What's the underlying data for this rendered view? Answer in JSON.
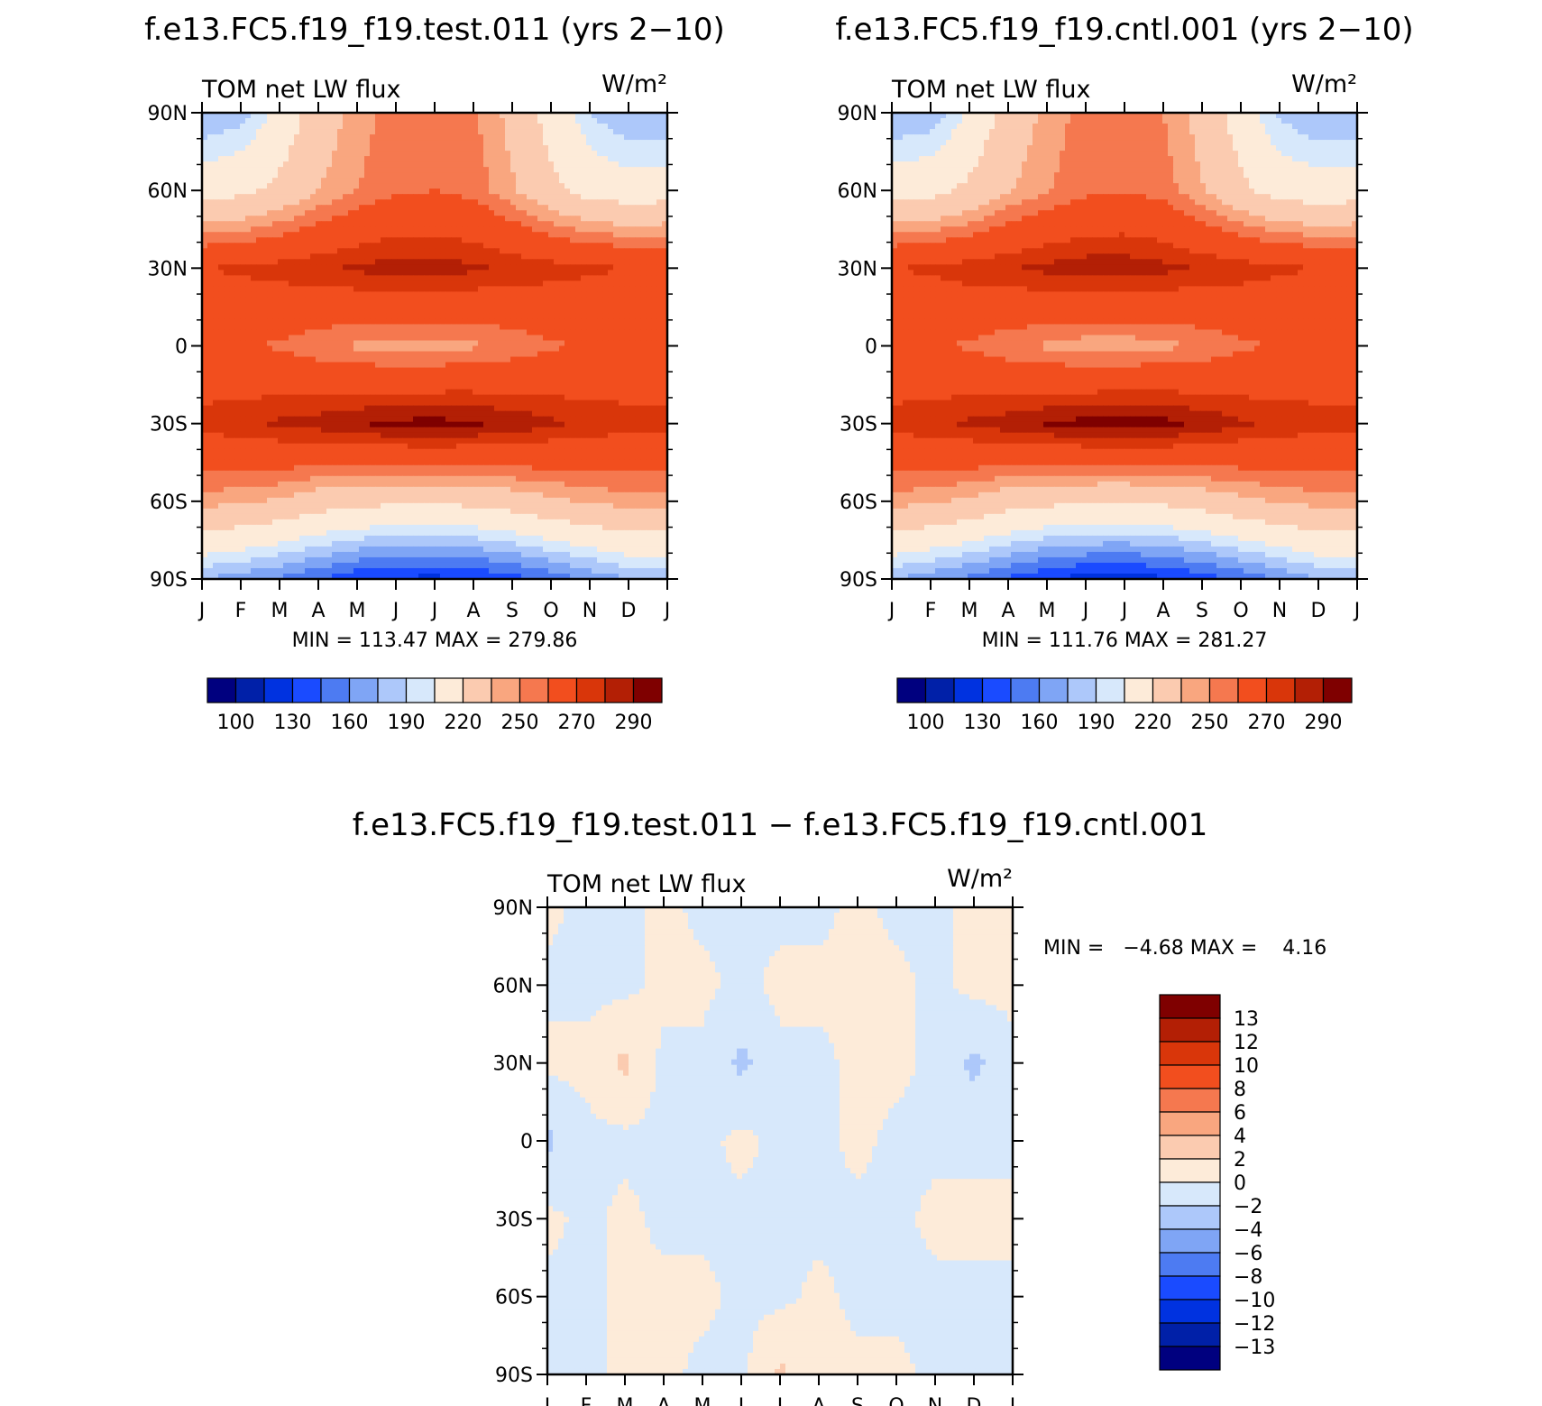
{
  "months": [
    "J",
    "F",
    "M",
    "A",
    "M",
    "J",
    "J",
    "A",
    "S",
    "O",
    "N",
    "D",
    "J"
  ],
  "lat_labels": [
    "90N",
    "60N",
    "30N",
    "0",
    "30S",
    "60S",
    "90S"
  ],
  "colors": {
    "abs": [
      "#00007f",
      "#0020a8",
      "#0032e0",
      "#1a4bff",
      "#4d7bf2",
      "#7fa5f5",
      "#adc8fa",
      "#d7e8fb",
      "#fdebd9",
      "#fbcbb0",
      "#f9a67f",
      "#f5784f",
      "#f24e1e",
      "#d9360a",
      "#b31f05",
      "#7f0000"
    ],
    "diff": [
      "#00007f",
      "#0020a8",
      "#0032e0",
      "#1a4bff",
      "#4d7bf2",
      "#7fa5f5",
      "#adc8fa",
      "#d7e8fb",
      "#fdebd9",
      "#fbcbb0",
      "#f9a67f",
      "#f5784f",
      "#f24e1e",
      "#d9360a",
      "#b31f05",
      "#7f0000"
    ]
  },
  "panels": [
    {
      "id": "test",
      "title": "f.e13.FC5.f19_f19.test.011 (yrs 2−10)",
      "left_label": "TOM net LW flux",
      "units_label": "W/m²",
      "min_max_text": "MIN = 113.47 MAX = 279.86",
      "colorbar_labels": [
        "100",
        "130",
        "160",
        "190",
        "220",
        "250",
        "270",
        "290"
      ]
    },
    {
      "id": "cntl",
      "title": "f.e13.FC5.f19_f19.cntl.001 (yrs 2−10)",
      "left_label": "TOM net LW flux",
      "units_label": "W/m²",
      "min_max_text": "MIN = 111.76 MAX = 281.27",
      "colorbar_labels": [
        "100",
        "130",
        "160",
        "190",
        "220",
        "250",
        "270",
        "290"
      ]
    },
    {
      "id": "diff",
      "title": "f.e13.FC5.f19_f19.test.011 − f.e13.FC5.f19_f19.cntl.001",
      "left_label": "TOM net LW flux",
      "units_label": "W/m²",
      "min_max_text": "MIN =   −4.68 MAX =    4.16",
      "colorbar_labels": [
        "13",
        "12",
        "10",
        "8",
        "6",
        "4",
        "2",
        "0",
        "−2",
        "−4",
        "−6",
        "−8",
        "−10",
        "−12",
        "−13"
      ]
    }
  ],
  "chart_data": [
    {
      "type": "heatmap",
      "title": "f.e13.FC5.f19_f19.test.011 (yrs 2−10)",
      "subtitle": "TOM net LW flux",
      "units": "W/m²",
      "xlabel": "",
      "ylabel": "",
      "x": [
        "J",
        "F",
        "M",
        "A",
        "M",
        "J",
        "J",
        "A",
        "S",
        "O",
        "N",
        "D",
        "J"
      ],
      "y": [
        "90N",
        "60N",
        "30N",
        "0",
        "30S",
        "60S",
        "90S"
      ],
      "values": [
        [
          150,
          155,
          175,
          200,
          215,
          225,
          228,
          222,
          205,
          182,
          160,
          150,
          150
        ],
        [
          180,
          185,
          195,
          210,
          220,
          228,
          230,
          226,
          212,
          195,
          182,
          178,
          180
        ],
        [
          250,
          252,
          255,
          258,
          262,
          265,
          265,
          262,
          258,
          255,
          252,
          250,
          250
        ],
        [
          235,
          232,
          228,
          222,
          218,
          215,
          215,
          218,
          222,
          228,
          232,
          235,
          235
        ],
        [
          255,
          258,
          262,
          265,
          270,
          273,
          274,
          272,
          268,
          262,
          258,
          255,
          255
        ],
        [
          215,
          212,
          208,
          200,
          196,
          193,
          193,
          195,
          200,
          207,
          212,
          215,
          215
        ],
        [
          150,
          145,
          138,
          130,
          122,
          118,
          117,
          120,
          125,
          133,
          142,
          150,
          150
        ]
      ],
      "min": 113.47,
      "max": 279.86,
      "colorbar_levels": [
        100,
        130,
        160,
        190,
        220,
        250,
        270,
        290
      ]
    },
    {
      "type": "heatmap",
      "title": "f.e13.FC5.f19_f19.cntl.001 (yrs 2−10)",
      "subtitle": "TOM net LW flux",
      "units": "W/m²",
      "xlabel": "",
      "ylabel": "",
      "x": [
        "J",
        "F",
        "M",
        "A",
        "M",
        "J",
        "J",
        "A",
        "S",
        "O",
        "N",
        "D",
        "J"
      ],
      "y": [
        "90N",
        "60N",
        "30N",
        "0",
        "30S",
        "60S",
        "90S"
      ],
      "values": [
        [
          150,
          152,
          172,
          198,
          214,
          224,
          226,
          220,
          204,
          180,
          158,
          150,
          150
        ],
        [
          180,
          184,
          194,
          209,
          219,
          227,
          229,
          225,
          211,
          194,
          181,
          178,
          180
        ],
        [
          250,
          252,
          256,
          259,
          263,
          266,
          266,
          263,
          259,
          256,
          252,
          250,
          250
        ],
        [
          235,
          232,
          228,
          222,
          218,
          214,
          214,
          217,
          221,
          227,
          232,
          235,
          235
        ],
        [
          255,
          258,
          262,
          266,
          271,
          274,
          276,
          274,
          268,
          262,
          258,
          255,
          255
        ],
        [
          215,
          212,
          207,
          199,
          195,
          192,
          191,
          194,
          199,
          206,
          211,
          215,
          215
        ],
        [
          150,
          144,
          137,
          128,
          120,
          116,
          115,
          118,
          124,
          132,
          141,
          150,
          150
        ]
      ],
      "min": 111.76,
      "max": 281.27,
      "colorbar_levels": [
        100,
        130,
        160,
        190,
        220,
        250,
        270,
        290
      ]
    },
    {
      "type": "heatmap",
      "title": "f.e13.FC5.f19_f19.test.011 − f.e13.FC5.f19_f19.cntl.001",
      "subtitle": "TOM net LW flux",
      "units": "W/m²",
      "xlabel": "",
      "ylabel": "",
      "x": [
        "J",
        "F",
        "M",
        "A",
        "M",
        "J",
        "J",
        "A",
        "S",
        "O",
        "N",
        "D",
        "J"
      ],
      "y": [
        "90N",
        "60N",
        "30N",
        "0",
        "30S",
        "60S",
        "90S"
      ],
      "values": [
        [
          0.5,
          -0.5,
          -0.5,
          0.5,
          -0.5,
          -0.5,
          -0.5,
          -0.5,
          0.5,
          -0.5,
          -0.5,
          0.5,
          0.5
        ],
        [
          -0.5,
          -0.5,
          -0.5,
          0.5,
          0.5,
          -0.5,
          0.5,
          0.5,
          0.5,
          0.5,
          -0.5,
          0.5,
          0.5
        ],
        [
          0.5,
          0.5,
          2.5,
          -0.5,
          -0.5,
          -2.5,
          -0.5,
          -0.5,
          0.5,
          0.5,
          -0.5,
          -2.5,
          -0.5
        ],
        [
          -2.5,
          -0.5,
          -0.5,
          -0.5,
          -0.5,
          0.5,
          -0.5,
          -0.5,
          0.5,
          -0.5,
          -0.5,
          -0.5,
          -0.5
        ],
        [
          0.5,
          -0.5,
          0.5,
          -0.5,
          -0.5,
          -0.5,
          -0.5,
          -0.5,
          -0.5,
          -0.5,
          0.5,
          0.5,
          0.5
        ],
        [
          -0.5,
          -0.5,
          0.5,
          0.5,
          0.5,
          -0.5,
          -0.5,
          0.5,
          -0.5,
          -0.5,
          -0.5,
          -0.5,
          -0.5
        ],
        [
          -0.5,
          -0.5,
          0.5,
          0.5,
          -0.5,
          -0.5,
          2.5,
          0.5,
          0.5,
          0.5,
          -0.5,
          -0.5,
          -0.5
        ]
      ],
      "min": -4.68,
      "max": 4.16,
      "colorbar_levels": [
        13,
        12,
        10,
        8,
        6,
        4,
        2,
        0,
        -2,
        -4,
        -6,
        -8,
        -10,
        -12,
        -13
      ]
    }
  ]
}
